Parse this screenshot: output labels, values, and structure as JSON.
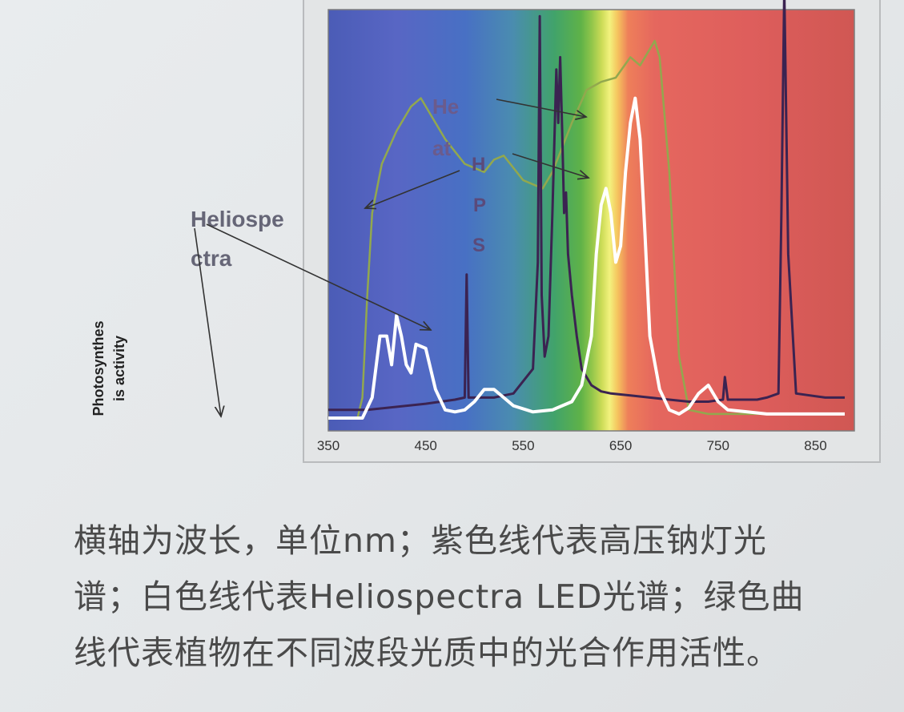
{
  "chart_data": {
    "type": "line",
    "xlabel": "",
    "ylabel": "Photosynthes is activity",
    "xlim": [
      350,
      880
    ],
    "xticks": [
      "350",
      "450",
      "550",
      "650",
      "750",
      "850"
    ],
    "ylim": [
      0,
      1
    ],
    "background": "visible spectrum gradient (blue → green → yellow → red)",
    "series": [
      {
        "key": "hps",
        "color": "#3b2351",
        "x": [
          350,
          390,
          450,
          480,
          490,
          492,
          494,
          498,
          520,
          540,
          560,
          565,
          567,
          569,
          572,
          576,
          580,
          584,
          586,
          588,
          590,
          592,
          594,
          596,
          600,
          605,
          610,
          615,
          620,
          630,
          640,
          660,
          680,
          700,
          720,
          740,
          755,
          757,
          760,
          790,
          800,
          812,
          815,
          818,
          822,
          830,
          860,
          880
        ],
        "y": [
          0.02,
          0.02,
          0.035,
          0.045,
          0.05,
          0.35,
          0.05,
          0.05,
          0.05,
          0.06,
          0.12,
          0.38,
          0.98,
          0.3,
          0.15,
          0.2,
          0.5,
          0.85,
          0.72,
          0.88,
          0.7,
          0.5,
          0.55,
          0.4,
          0.3,
          0.2,
          0.12,
          0.1,
          0.08,
          0.065,
          0.06,
          0.055,
          0.05,
          0.045,
          0.04,
          0.04,
          0.045,
          0.1,
          0.045,
          0.045,
          0.05,
          0.06,
          0.5,
          1.05,
          0.4,
          0.06,
          0.05,
          0.05
        ]
      },
      {
        "key": "led",
        "color": "#ffffff",
        "x": [
          350,
          385,
          395,
          403,
          410,
          415,
          420,
          425,
          430,
          435,
          440,
          450,
          460,
          470,
          480,
          490,
          500,
          510,
          520,
          530,
          540,
          560,
          580,
          600,
          610,
          620,
          625,
          630,
          635,
          640,
          645,
          650,
          655,
          660,
          665,
          670,
          675,
          680,
          690,
          700,
          710,
          720,
          730,
          740,
          750,
          760,
          780,
          800,
          880
        ],
        "y": [
          0.0,
          0.0,
          0.05,
          0.2,
          0.2,
          0.13,
          0.25,
          0.2,
          0.13,
          0.11,
          0.18,
          0.17,
          0.07,
          0.02,
          0.015,
          0.02,
          0.04,
          0.07,
          0.07,
          0.05,
          0.03,
          0.015,
          0.02,
          0.04,
          0.08,
          0.2,
          0.4,
          0.52,
          0.56,
          0.5,
          0.38,
          0.42,
          0.6,
          0.72,
          0.78,
          0.68,
          0.45,
          0.2,
          0.07,
          0.02,
          0.01,
          0.025,
          0.06,
          0.08,
          0.04,
          0.02,
          0.015,
          0.01,
          0.01
        ]
      },
      {
        "key": "par",
        "color": "#92a84e",
        "x": [
          350,
          380,
          385,
          390,
          395,
          405,
          420,
          435,
          445,
          455,
          470,
          490,
          510,
          520,
          530,
          550,
          570,
          580,
          590,
          600,
          615,
          630,
          645,
          660,
          670,
          680,
          685,
          690,
          700,
          710,
          720,
          740,
          760,
          880
        ],
        "y": [
          0.0,
          0.0,
          0.05,
          0.3,
          0.5,
          0.62,
          0.7,
          0.76,
          0.78,
          0.74,
          0.68,
          0.62,
          0.6,
          0.63,
          0.64,
          0.58,
          0.56,
          0.6,
          0.66,
          0.72,
          0.8,
          0.82,
          0.83,
          0.88,
          0.86,
          0.9,
          0.92,
          0.88,
          0.6,
          0.15,
          0.02,
          0.01,
          0.01,
          0.01
        ]
      }
    ],
    "annotations": {
      "heat": [
        "He",
        "at"
      ],
      "hps": [
        "H",
        "P",
        "S"
      ],
      "helio": [
        "Heliospe",
        "ctra"
      ]
    }
  },
  "ylabel_lines": [
    "Photosynthes",
    "is activity"
  ],
  "caption_lines": [
    "横轴为波长，单位nm；紫色线代表高压钠灯光",
    "谱；白色线代表Heliospectra LED光谱；绿色曲",
    "线代表植物在不同波段光质中的光合作用活性。"
  ]
}
